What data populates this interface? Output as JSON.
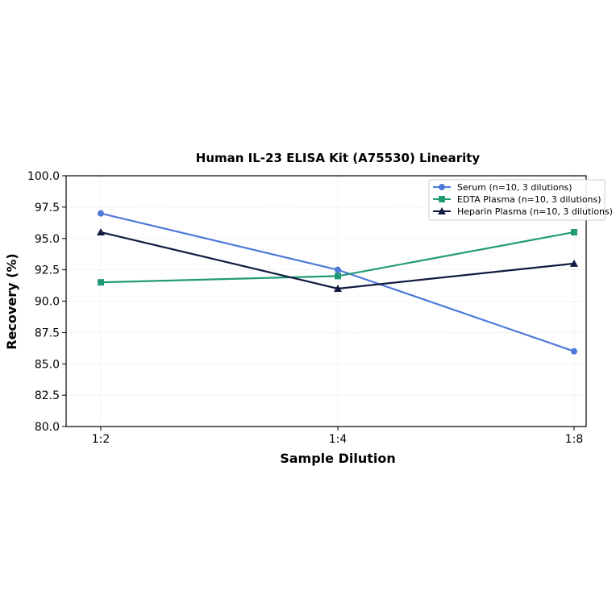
{
  "chart_data": {
    "type": "line",
    "title": "Human IL-23 ELISA Kit (A75530) Linearity",
    "xlabel": "Sample Dilution",
    "ylabel": "Recovery (%)",
    "categories": [
      "1:2",
      "1:4",
      "1:8"
    ],
    "ylim": [
      80.0,
      100.0
    ],
    "yticks": [
      "80.0",
      "82.5",
      "85.0",
      "87.5",
      "90.0",
      "92.5",
      "95.0",
      "97.5",
      "100.0"
    ],
    "grid": true,
    "legend_position": "top-right",
    "series": [
      {
        "name": "Serum (n=10, 3 dilutions)",
        "values": [
          97.0,
          92.5,
          86.0
        ],
        "color": "#4e79d8",
        "marker": "circle"
      },
      {
        "name": "EDTA Plasma (n=10, 3 dilutions)",
        "values": [
          91.5,
          92.0,
          95.5
        ],
        "color": "#219a78",
        "marker": "square"
      },
      {
        "name": "Heparin Plasma (n=10, 3 dilutions)",
        "values": [
          95.5,
          91.0,
          93.0
        ],
        "color": "#111a3f",
        "marker": "triangle"
      }
    ]
  }
}
